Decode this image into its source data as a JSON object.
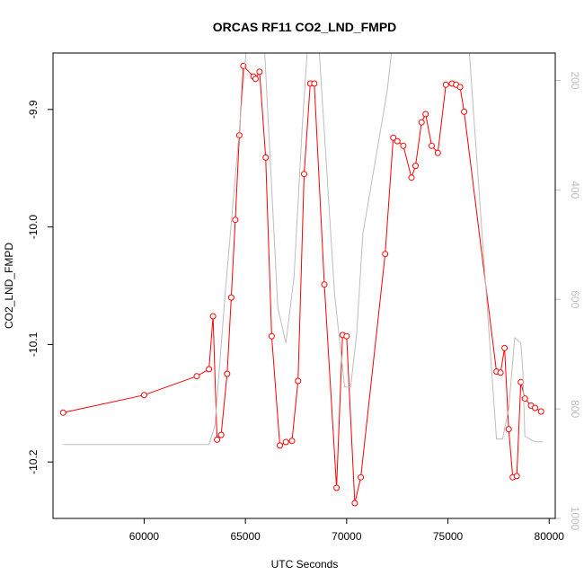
{
  "chart_data": {
    "type": "line",
    "title": "ORCAS RF11 CO2_LND_FMPD",
    "xlabel": "UTC Seconds",
    "ylabel": "CO2_LND_FMPD",
    "xlim": [
      55500,
      80300
    ],
    "ylim": [
      -10.248,
      -9.852
    ],
    "y2lim": [
      1000,
      150
    ],
    "x_ticks": [
      60000,
      65000,
      70000,
      75000,
      80000
    ],
    "x_tick_labels": [
      "60000",
      "65000",
      "70000",
      "75000",
      "80000"
    ],
    "y_ticks": [
      -10.2,
      -10.1,
      -10.0,
      -9.9
    ],
    "y_tick_labels": [
      "-10.2",
      "-10.1",
      "-10.0",
      "-9.9"
    ],
    "y2_ticks": [
      200,
      400,
      600,
      800,
      1000
    ],
    "y2_tick_labels": [
      "200",
      "400",
      "600",
      "800",
      "1000"
    ],
    "grid": false,
    "series": [
      {
        "axis": "left",
        "color": "#ff0000",
        "marker": "open-circle",
        "x": [
          56000,
          60000,
          62600,
          63200,
          63400,
          63600,
          63800,
          64100,
          64300,
          64500,
          64700,
          64900,
          65400,
          65500,
          65700,
          66000,
          66300,
          66700,
          67000,
          67300,
          67600,
          67900,
          68200,
          68400,
          68900,
          69500,
          69800,
          70000,
          70400,
          70700,
          71900,
          72300,
          72500,
          72800,
          73200,
          73400,
          73700,
          73900,
          74200,
          74500,
          74900,
          75200,
          75400,
          75600,
          75800,
          77400,
          77600,
          77800,
          78000,
          78200,
          78400,
          78600,
          78800,
          79100,
          79300,
          79600
        ],
        "y": [
          -10.158,
          -10.143,
          -10.127,
          -10.121,
          -10.076,
          -10.181,
          -10.177,
          -10.125,
          -10.06,
          -9.994,
          -9.922,
          -9.863,
          -9.872,
          -9.874,
          -9.868,
          -9.941,
          -10.093,
          -10.186,
          -10.183,
          -10.182,
          -10.131,
          -9.955,
          -9.878,
          -9.878,
          -10.049,
          -10.222,
          -10.092,
          -10.093,
          -10.235,
          -10.213,
          -10.023,
          -9.924,
          -9.927,
          -9.931,
          -9.958,
          -9.948,
          -9.911,
          -9.904,
          -9.931,
          -9.937,
          -9.879,
          -9.878,
          -9.879,
          -9.881,
          -9.902,
          -10.123,
          -10.124,
          -10.103,
          -10.172,
          -10.213,
          -10.212,
          -10.132,
          -10.146,
          -10.152,
          -10.154,
          -10.157
        ]
      },
      {
        "axis": "right",
        "color": "#bdbdbd",
        "marker": "none",
        "x": [
          56000,
          63200,
          63500,
          64000,
          64700,
          65100,
          65900,
          66600,
          67000,
          67400,
          67800,
          68100,
          68600,
          69400,
          69900,
          70200,
          70500,
          70800,
          71400,
          72000,
          72300,
          72500,
          73300,
          73400,
          73600,
          74300,
          74400,
          74600,
          75100,
          75600,
          76000,
          77400,
          77700,
          78000,
          78300,
          78600,
          78700,
          78800,
          79300,
          79700
        ],
        "y": [
          865,
          865,
          830,
          590,
          290,
          120,
          110,
          615,
          680,
          560,
          290,
          120,
          120,
          590,
          760,
          760,
          660,
          480,
          350,
          220,
          120,
          120,
          120,
          130,
          120,
          120,
          130,
          120,
          120,
          120,
          120,
          855,
          855,
          800,
          670,
          680,
          730,
          850,
          860,
          860
        ]
      }
    ]
  }
}
